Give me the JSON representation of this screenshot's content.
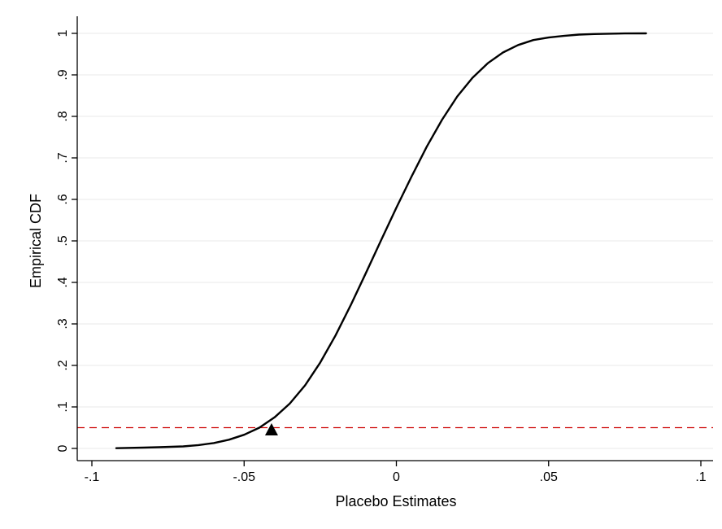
{
  "chart_data": {
    "type": "line",
    "title": "",
    "xlabel": "Placebo Estimates",
    "ylabel": "Empirical CDF",
    "xlim": [
      -0.1,
      0.1
    ],
    "ylim": [
      0,
      1
    ],
    "x_ticks": [
      {
        "value": -0.1,
        "label": "-.1"
      },
      {
        "value": -0.05,
        "label": "-.05"
      },
      {
        "value": 0,
        "label": "0"
      },
      {
        "value": 0.05,
        "label": ".05"
      },
      {
        "value": 0.1,
        "label": ".1"
      }
    ],
    "y_ticks": [
      {
        "value": 0,
        "label": "0"
      },
      {
        "value": 0.1,
        "label": ".1"
      },
      {
        "value": 0.2,
        "label": ".2"
      },
      {
        "value": 0.3,
        "label": ".3"
      },
      {
        "value": 0.4,
        "label": ".4"
      },
      {
        "value": 0.5,
        "label": ".5"
      },
      {
        "value": 0.6,
        "label": ".6"
      },
      {
        "value": 0.7,
        "label": ".7"
      },
      {
        "value": 0.8,
        "label": ".8"
      },
      {
        "value": 0.9,
        "label": ".9"
      },
      {
        "value": 1,
        "label": "1"
      }
    ],
    "grid": true,
    "series": [
      {
        "color": "#000000",
        "x": [
          -0.092,
          -0.083,
          -0.078,
          -0.074,
          -0.07,
          -0.065,
          -0.06,
          -0.055,
          -0.05,
          -0.045,
          -0.04,
          -0.035,
          -0.03,
          -0.025,
          -0.02,
          -0.015,
          -0.01,
          -0.005,
          0,
          0.005,
          0.01,
          0.015,
          0.02,
          0.025,
          0.03,
          0.035,
          0.04,
          0.045,
          0.05,
          0.055,
          0.06,
          0.065,
          0.07,
          0.075,
          0.082
        ],
        "y": [
          0.0005,
          0.002,
          0.003,
          0.004,
          0.005,
          0.008,
          0.013,
          0.021,
          0.033,
          0.05,
          0.075,
          0.108,
          0.152,
          0.207,
          0.272,
          0.345,
          0.423,
          0.502,
          0.58,
          0.655,
          0.727,
          0.792,
          0.848,
          0.893,
          0.928,
          0.954,
          0.972,
          0.984,
          0.99,
          0.994,
          0.997,
          0.9985,
          0.9993,
          0.9998,
          1.0
        ]
      }
    ],
    "reference_line": {
      "y": 0.05,
      "color": "#cc0000",
      "style": "dashed"
    },
    "marker": {
      "x": -0.041,
      "y": 0.045,
      "shape": "triangle",
      "color": "#000000"
    },
    "colors": {
      "curve": "#000000",
      "reference": "#cc0000",
      "grid": "#eaeaea",
      "axis": "#000000"
    }
  }
}
